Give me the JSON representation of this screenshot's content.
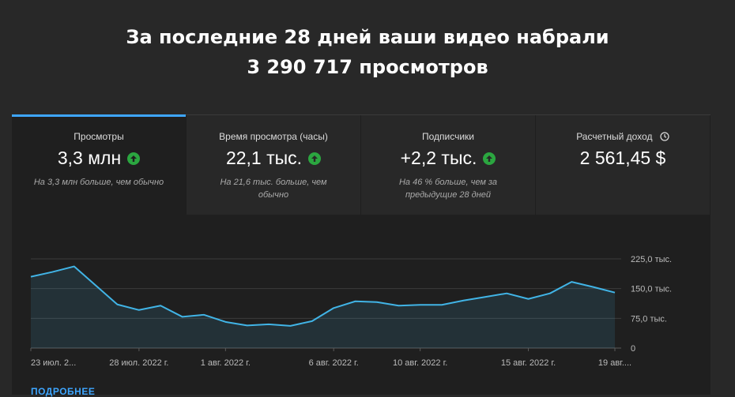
{
  "headline": {
    "line1": "За последние 28 дней ваши видео набрали",
    "line2": "3 290 717 просмотров"
  },
  "tabs": [
    {
      "label": "Просмотры",
      "value": "3,3 млн",
      "icon": "arrow-up-icon",
      "note": "На 3,3 млн больше, чем обычно",
      "active": true
    },
    {
      "label": "Время просмотра (часы)",
      "value": "22,1 тыс.",
      "icon": "arrow-up-icon",
      "note": "На 21,6 тыс. больше, чем обычно",
      "active": false
    },
    {
      "label": "Подписчики",
      "value": "+2,2 тыс.",
      "icon": "arrow-up-icon",
      "note": "На 46 % больше, чем за предыдущие 28 дней",
      "active": false
    },
    {
      "label": "Расчетный доход",
      "value": "2 561,45 $",
      "icon": "clock-icon",
      "note": "",
      "active": false
    }
  ],
  "colors": {
    "accent": "#3ea6ff",
    "up": "#2ba640",
    "line": "#41b4e6"
  },
  "more_link": "ПОДРОБНЕЕ",
  "chart_data": {
    "type": "area",
    "x": [
      "23 июл.",
      "24 июл.",
      "25 июл.",
      "26 июл.",
      "27 июл.",
      "28 июл.",
      "29 июл.",
      "30 июл.",
      "31 июл.",
      "1 авг.",
      "2 авг.",
      "3 авг.",
      "4 авг.",
      "5 авг.",
      "6 авг.",
      "7 авг.",
      "8 авг.",
      "9 авг.",
      "10 авг.",
      "11 авг.",
      "12 авг.",
      "13 авг.",
      "14 авг.",
      "15 авг.",
      "16 авг.",
      "17 авг.",
      "18 авг.",
      "19 авг."
    ],
    "series": [
      {
        "values": [
          180000,
          192000,
          206000,
          158000,
          110000,
          96000,
          107000,
          79000,
          84000,
          66000,
          57000,
          60000,
          56000,
          68000,
          101000,
          118000,
          116000,
          107000,
          109000,
          109000,
          120000,
          129000,
          138000,
          124000,
          138000,
          167000,
          154000,
          140000
        ]
      }
    ],
    "x_tick_labels": [
      "23 июл. 2...",
      "28 июл. 2022 г.",
      "1 авг. 2022 г.",
      "6 авг. 2022 г.",
      "10 авг. 2022 г.",
      "15 авг. 2022 г.",
      "19 авг...."
    ],
    "x_tick_index": [
      0,
      5,
      9,
      14,
      18,
      23,
      27
    ],
    "y_ticks": [
      0,
      75000,
      150000,
      225000
    ],
    "y_tick_labels": [
      "0",
      "75,0 тыс.",
      "150,0 тыс.",
      "225,0 тыс."
    ],
    "ylim": [
      0,
      225000
    ],
    "grid": true
  }
}
